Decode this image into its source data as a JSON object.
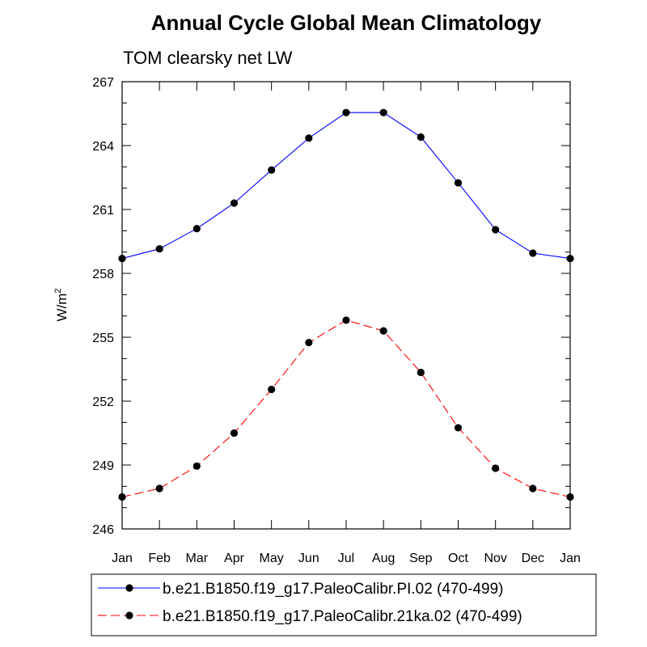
{
  "chart_data": {
    "type": "line",
    "title": "Annual Cycle Global Mean Climatology",
    "subtitle": "TOM clearsky net LW",
    "ylabel": "W/m",
    "ylabel_sup": "2",
    "xlabel": "",
    "categories": [
      "Jan",
      "Feb",
      "Mar",
      "Apr",
      "May",
      "Jun",
      "Jul",
      "Aug",
      "Sep",
      "Oct",
      "Nov",
      "Dec",
      "Jan"
    ],
    "ylim": [
      246,
      267
    ],
    "yticks": [
      246,
      249,
      252,
      255,
      258,
      261,
      264,
      267
    ],
    "series": [
      {
        "name": "b.e21.B1850.f19_g17.PaleoCalibr.PI.02 (470-499)",
        "color": "#0000ff",
        "dash": "solid",
        "values": [
          258.7,
          259.15,
          260.1,
          261.3,
          262.85,
          264.35,
          265.55,
          265.55,
          264.4,
          262.25,
          260.05,
          258.95,
          258.7
        ]
      },
      {
        "name": "b.e21.B1850.f19_g17.PaleoCalibr.21ka.02 (470-499)",
        "color": "#ff0000",
        "dash": "dashed",
        "values": [
          247.5,
          247.9,
          248.95,
          250.5,
          252.55,
          254.75,
          255.8,
          255.3,
          253.35,
          250.75,
          248.85,
          247.9,
          247.5
        ]
      }
    ],
    "legend": "bottom"
  }
}
